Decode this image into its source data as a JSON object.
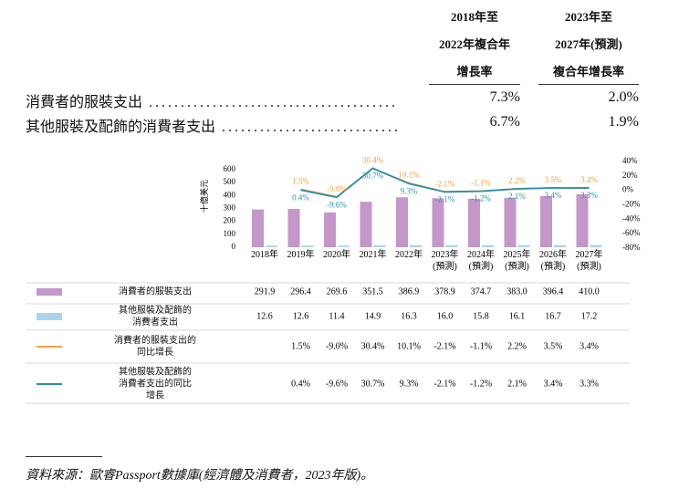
{
  "header": {
    "columns": [
      [
        "2018年至",
        "2022年複合年",
        "增長率"
      ],
      [
        "2023年至",
        "2027年(預測)",
        "複合年增長率"
      ]
    ]
  },
  "table": {
    "rows": [
      {
        "label": "消費者的服裝支出",
        "values": [
          "7.3%",
          "2.0%"
        ]
      },
      {
        "label": "其他服裝及配飾的消費者支出",
        "values": [
          "6.7%",
          "1.9%"
        ]
      }
    ]
  },
  "chart_data": {
    "type": "bar_line",
    "y_label": "十億美元",
    "categories": [
      [
        "2018年"
      ],
      [
        "2019年"
      ],
      [
        "2020年"
      ],
      [
        "2021年"
      ],
      [
        "2022年"
      ],
      [
        "2023年",
        "(預測)"
      ],
      [
        "2024年",
        "(預測)"
      ],
      [
        "2025年",
        "(預測)"
      ],
      [
        "2026年",
        "(預測)"
      ],
      [
        "2027年",
        "(預測)"
      ]
    ],
    "ylim": [
      0,
      600
    ],
    "yticks": [
      0,
      100,
      200,
      300,
      400,
      500,
      600
    ],
    "y2lim": [
      -80,
      40
    ],
    "y2ticks": [
      {
        "value": 40,
        "label": "40%"
      },
      {
        "value": 20,
        "label": "20%"
      },
      {
        "value": 0,
        "label": "0%"
      },
      {
        "value": -20,
        "label": "-20%"
      },
      {
        "value": -40,
        "label": "-40%"
      },
      {
        "value": -60,
        "label": "-60%"
      },
      {
        "value": -80,
        "label": "-80%"
      }
    ],
    "series": [
      {
        "name": "消費者的服裝支出",
        "kind": "bar",
        "color": "#c497c9",
        "values": [
          291.9,
          296.4,
          269.6,
          351.5,
          386.9,
          378.9,
          374.7,
          383.0,
          396.4,
          410.0
        ],
        "value_labels": [
          "291.9",
          "296.4",
          "269.6",
          "351.5",
          "386.9",
          "378.9",
          "374.7",
          "383.0",
          "396.4",
          "410.0"
        ]
      },
      {
        "name": "其他服裝及配飾的消費者支出",
        "kind": "bar",
        "color": "#a9d4ee",
        "values": [
          12.6,
          12.6,
          11.4,
          14.9,
          16.3,
          16.0,
          15.8,
          16.1,
          16.7,
          17.2
        ],
        "value_labels": [
          "12.6",
          "12.6",
          "11.4",
          "14.9",
          "16.3",
          "16.0",
          "15.8",
          "16.1",
          "16.7",
          "17.2"
        ]
      },
      {
        "name": "消費者的服裝支出的同比增長",
        "kind": "line",
        "axis": "y2",
        "color": "#f0a040",
        "values": [
          null,
          1.5,
          -9.0,
          30.4,
          10.1,
          -2.1,
          -1.1,
          2.2,
          3.5,
          3.4
        ],
        "value_labels": [
          null,
          "1.5%",
          "-9.0%",
          "30.4%",
          "10.1%",
          "-2.1%",
          "-1.1%",
          "2.2%",
          "3.5%",
          "3.4%"
        ]
      },
      {
        "name": "其他服裝及配飾的消費者支出的同比增長",
        "kind": "line",
        "axis": "y2",
        "color": "#2a8fa8",
        "values": [
          null,
          0.4,
          -9.6,
          30.7,
          9.3,
          -2.1,
          -1.2,
          2.1,
          3.4,
          3.3
        ],
        "value_labels": [
          null,
          "0.4%",
          "-9.6%",
          "30.7%",
          "9.3%",
          "-2.1%",
          "-1.2%",
          "2.1%",
          "3.4%",
          "3.3%"
        ]
      }
    ]
  },
  "footnote": {
    "rule": "",
    "text": "資料來源：歐睿Passport數據庫(經濟體及消費者，2023年版)。"
  }
}
